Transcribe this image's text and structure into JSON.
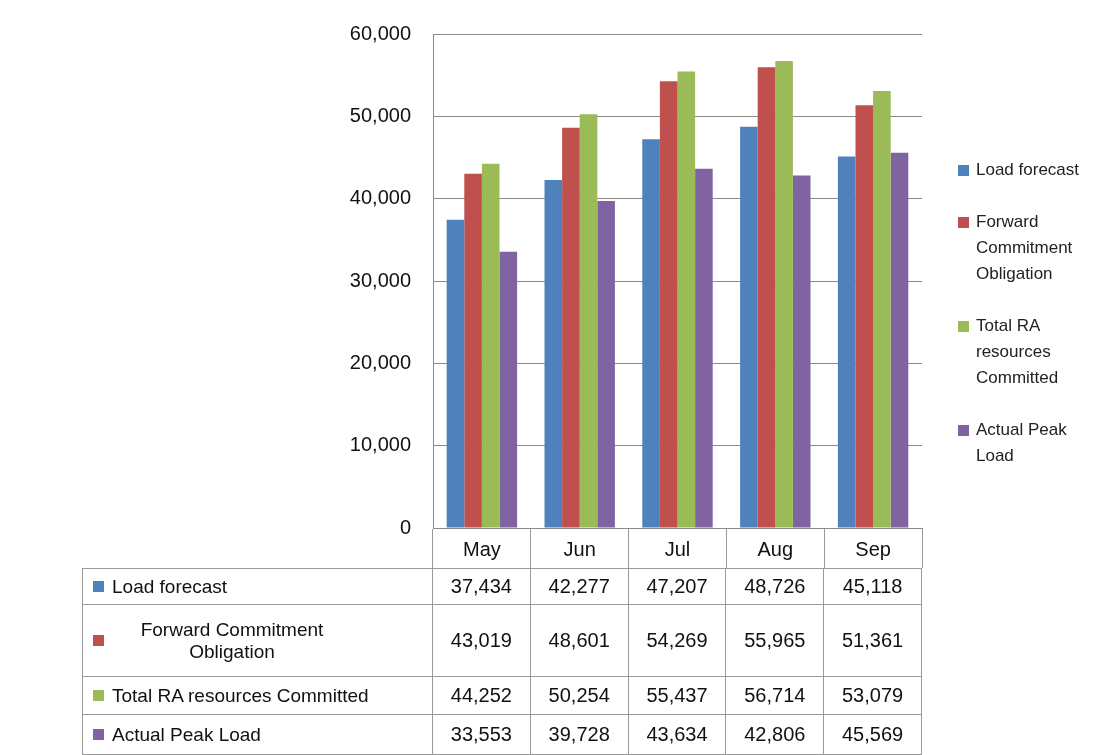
{
  "chart_data": {
    "type": "bar",
    "categories": [
      "May",
      "Jun",
      "Jul",
      "Aug",
      "Sep"
    ],
    "series": [
      {
        "name": "Load forecast",
        "color": "#4f81bd",
        "values": [
          37434,
          42277,
          47207,
          48726,
          45118
        ],
        "value_labels": [
          "37,434",
          "42,277",
          "47,207",
          "48,726",
          "45,118"
        ]
      },
      {
        "name": "Forward Commitment Obligation",
        "color": "#c0504d",
        "values": [
          43019,
          48601,
          54269,
          55965,
          51361
        ],
        "value_labels": [
          "43,019",
          "48,601",
          "54,269",
          "55,965",
          "51,361"
        ]
      },
      {
        "name": "Total RA resources Committed",
        "color": "#9bbb59",
        "values": [
          44252,
          50254,
          55437,
          56714,
          53079
        ],
        "value_labels": [
          "44,252",
          "50,254",
          "55,437",
          "56,714",
          "53,079"
        ]
      },
      {
        "name": "Actual Peak Load",
        "color": "#8064a2",
        "values": [
          33553,
          39728,
          43634,
          42806,
          45569
        ],
        "value_labels": [
          "33,553",
          "39,728",
          "43,634",
          "42,806",
          "45,569"
        ]
      }
    ],
    "ylim": [
      0,
      60000
    ],
    "yticks": [
      {
        "value": 0,
        "label": "0"
      },
      {
        "value": 10000,
        "label": "10,000"
      },
      {
        "value": 20000,
        "label": "20,000"
      },
      {
        "value": 30000,
        "label": "30,000"
      },
      {
        "value": 40000,
        "label": "40,000"
      },
      {
        "value": 50000,
        "label": "50,000"
      },
      {
        "value": 60000,
        "label": "60,000"
      }
    ],
    "grid": "y",
    "legend": "right"
  }
}
